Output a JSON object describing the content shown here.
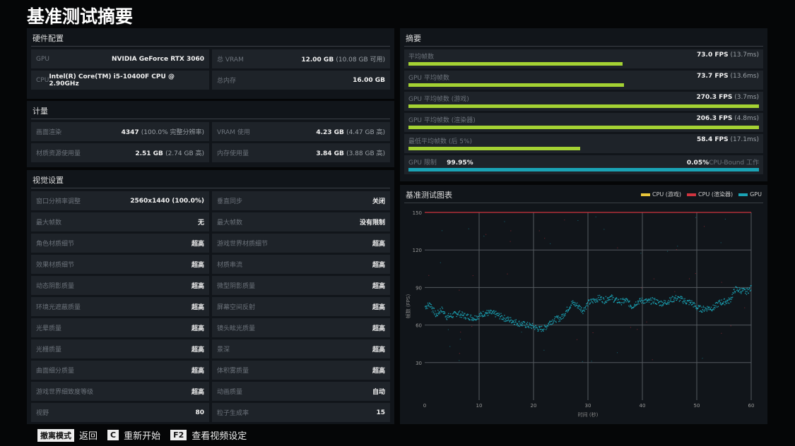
{
  "title": "基准测试摘要",
  "hardware": {
    "heading": "硬件配置",
    "rows": [
      {
        "k": "GPU",
        "v": "NVIDIA GeForce RTX 3060",
        "s": ""
      },
      {
        "k": "总 VRAM",
        "v": "12.00 GB",
        "s": "(10.08 GB 可用)"
      },
      {
        "k": "CPU",
        "v": "Intel(R) Core(TM) i5-10400F CPU @ 2.90GHz",
        "s": ""
      },
      {
        "k": "总内存",
        "v": "16.00 GB",
        "s": ""
      }
    ]
  },
  "metrics": {
    "heading": "计量",
    "rows": [
      {
        "k": "画面渲染",
        "v": "4347",
        "s": "(100.0% 完整分辨率)"
      },
      {
        "k": "VRAM 使用",
        "v": "4.23 GB",
        "s": "(4.47 GB 高)"
      },
      {
        "k": "材质资源使用量",
        "v": "2.51 GB",
        "s": "(2.74 GB 高)"
      },
      {
        "k": "内存使用量",
        "v": "3.84 GB",
        "s": "(3.88 GB 高)"
      }
    ]
  },
  "visual": {
    "heading": "视觉设置",
    "rows": [
      {
        "k": "窗口分辨率调整",
        "v": "2560x1440 (100.0%)"
      },
      {
        "k": "垂直同步",
        "v": "关闭"
      },
      {
        "k": "最大帧数",
        "v": "无"
      },
      {
        "k": "最大帧数",
        "v": "没有限制"
      },
      {
        "k": "角色材质细节",
        "v": "超高"
      },
      {
        "k": "游戏世界材质细节",
        "v": "超高"
      },
      {
        "k": "效果材质细节",
        "v": "超高"
      },
      {
        "k": "材质串流",
        "v": "超高"
      },
      {
        "k": "动态阴影质量",
        "v": "超高"
      },
      {
        "k": "微型阴影质量",
        "v": "超高"
      },
      {
        "k": "环境光遮蔽质量",
        "v": "超高"
      },
      {
        "k": "屏幕空间反射",
        "v": "超高"
      },
      {
        "k": "光晕质量",
        "v": "超高"
      },
      {
        "k": "镜头眩光质量",
        "v": "超高"
      },
      {
        "k": "光栅质量",
        "v": "超高"
      },
      {
        "k": "景深",
        "v": "超高"
      },
      {
        "k": "曲面细分质量",
        "v": "超高"
      },
      {
        "k": "体积雾质量",
        "v": "超高"
      },
      {
        "k": "游戏世界细致度等级",
        "v": "超高"
      },
      {
        "k": "动画质量",
        "v": "自动"
      },
      {
        "k": "视野",
        "v": "80"
      },
      {
        "k": "粒子生成率",
        "v": "15"
      }
    ]
  },
  "summary": {
    "heading": "摘要",
    "colors": {
      "bar": "#a4d233",
      "gpu_bound": "#1aa3b5"
    },
    "rows": [
      {
        "k": "平均帧数",
        "v": "73.0 FPS",
        "s": "(13.7ms)",
        "fraction": 0.61
      },
      {
        "k": "GPU 平均帧数",
        "v": "73.7 FPS",
        "s": "(13.6ms)",
        "fraction": 0.615
      },
      {
        "k": "GPU 平均帧数 (游戏)",
        "v": "270.3 FPS",
        "s": "(3.7ms)",
        "fraction": 1
      },
      {
        "k": "GPU 平均帧数 (渲染器)",
        "v": "206.3 FPS",
        "s": "(4.8ms)",
        "fraction": 1
      },
      {
        "k": "最低平均帧数 (后 5%)",
        "v": "58.4 FPS",
        "s": "(17.1ms)",
        "fraction": 0.49
      }
    ],
    "bound": {
      "k": "GPU 限制",
      "gpu": "99.95%",
      "cpu": "0.05%",
      "cpu_label": "CPU-Bound 工作",
      "fraction": 0.9995
    }
  },
  "chart_data": {
    "type": "scatter",
    "title": "基准测试图表",
    "xlabel": "时间 (秒)",
    "ylabel": "帧数 (FPS)",
    "xlim": [
      0,
      60
    ],
    "ylim": [
      0,
      150
    ],
    "xticks": [
      0,
      10,
      20,
      30,
      40,
      50,
      60
    ],
    "yticks": [
      30,
      60,
      90,
      120,
      150
    ],
    "grid": true,
    "legend": "top-right",
    "series": [
      {
        "name": "CPU (游戏)",
        "color": "#e8c53a",
        "x": [],
        "y": []
      },
      {
        "name": "CPU (渲染器)",
        "color": "#d0343f",
        "x": [
          0,
          60
        ],
        "y": [
          150,
          150
        ]
      },
      {
        "name": "GPU",
        "color": "#1aa3b5",
        "x": [
          0,
          1,
          2,
          3,
          4,
          5,
          6,
          7,
          8,
          9,
          10,
          11,
          12,
          13,
          14,
          15,
          16,
          17,
          18,
          19,
          20,
          21,
          22,
          23,
          24,
          25,
          26,
          27,
          28,
          29,
          30,
          31,
          32,
          33,
          34,
          35,
          36,
          37,
          38,
          39,
          40,
          41,
          42,
          43,
          44,
          45,
          46,
          47,
          48,
          49,
          50,
          51,
          52,
          53,
          54,
          55,
          56,
          57,
          58,
          59,
          60
        ],
        "y": [
          75,
          77,
          68,
          73,
          67,
          68,
          70,
          68,
          67,
          66,
          68,
          70,
          70,
          69,
          67,
          65,
          64,
          62,
          61,
          60,
          59,
          57,
          58,
          63,
          65,
          66,
          72,
          78,
          76,
          72,
          78,
          80,
          82,
          80,
          83,
          80,
          79,
          80,
          75,
          79,
          80,
          79,
          80,
          78,
          78,
          80,
          82,
          81,
          79,
          78,
          74,
          73,
          74,
          74,
          78,
          79,
          80,
          89,
          88,
          87,
          90
        ]
      }
    ]
  },
  "footer": [
    {
      "key": "撤离模式",
      "label": "返回"
    },
    {
      "key": "C",
      "label": "重新开始"
    },
    {
      "key": "F2",
      "label": "查看视频设定"
    }
  ]
}
